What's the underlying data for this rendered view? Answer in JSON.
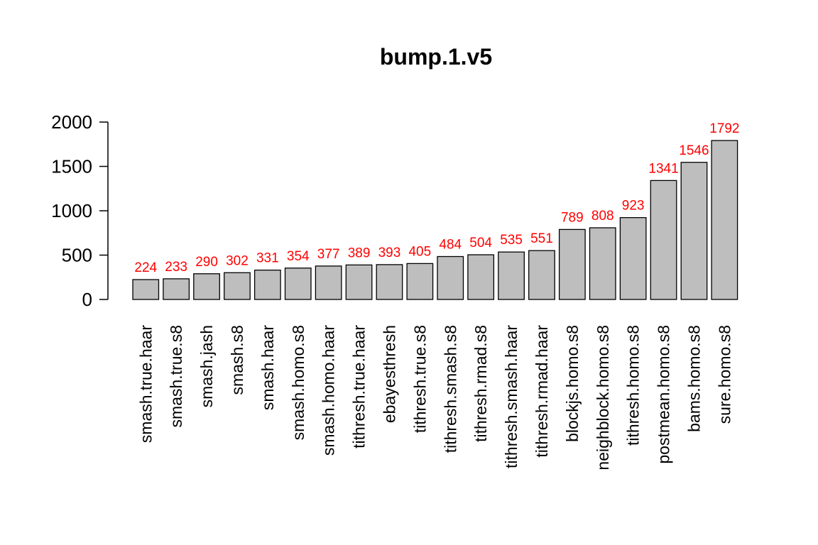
{
  "chart_data": {
    "type": "bar",
    "title": "bump.1.v5",
    "xlabel": "",
    "ylabel": "",
    "ylim": [
      0,
      2000
    ],
    "yticks": [
      0,
      500,
      1000,
      1500,
      2000
    ],
    "categories": [
      "smash.true.haar",
      "smash.true.s8",
      "smash.jash",
      "smash.s8",
      "smash.haar",
      "smash.homo.s8",
      "smash.homo.haar",
      "tithresh.true.haar",
      "ebayesthresh",
      "tithresh.true.s8",
      "tithresh.smash.s8",
      "tithresh.rmad.s8",
      "tithresh.smash.haar",
      "tithresh.rmad.haar",
      "blockjs.homo.s8",
      "neighblock.homo.s8",
      "tithresh.homo.s8",
      "postmean.homo.s8",
      "bams.homo.s8",
      "sure.homo.s8"
    ],
    "values": [
      224,
      233,
      290,
      302,
      331,
      354,
      377,
      389,
      393,
      405,
      484,
      504,
      535,
      551,
      789,
      808,
      923,
      1341,
      1546,
      1792
    ],
    "value_labels": [
      "224",
      "233",
      "290",
      "302",
      "331",
      "354",
      "377",
      "389",
      "393",
      "405",
      "484",
      "504",
      "535",
      "551",
      "789",
      "808",
      "923",
      "1341",
      "1546",
      "1792"
    ],
    "grid": false,
    "bar_color": "#bebebe",
    "value_label_color": "#ff0000"
  }
}
